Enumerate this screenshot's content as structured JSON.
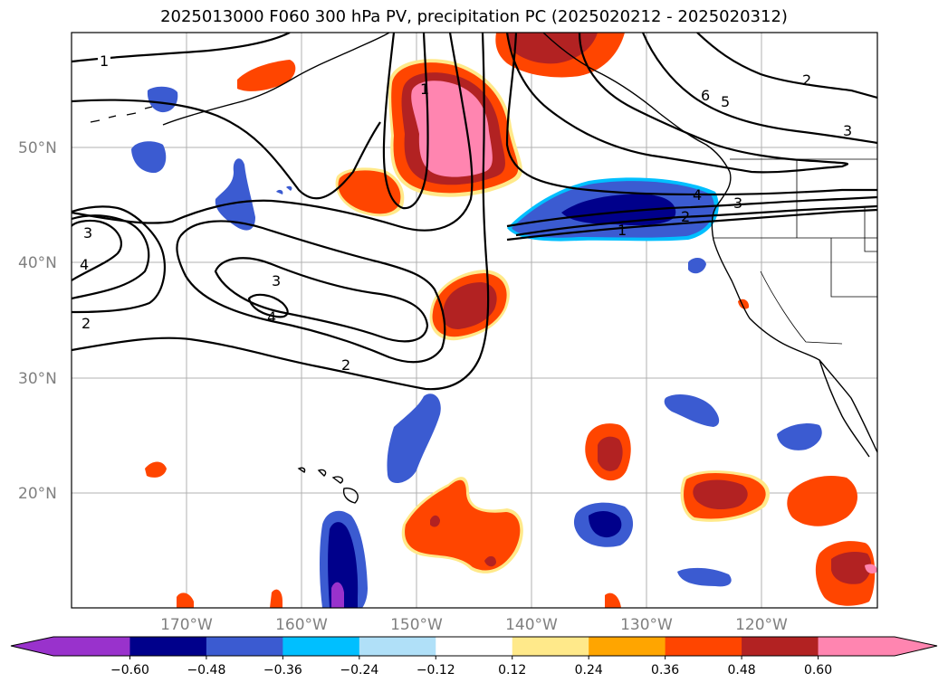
{
  "title": "2025013000 F060 300 hPa PV, precipitation PC (2025020212 - 2025020312)",
  "lat_labels": [
    "50°N",
    "40°N",
    "30°N",
    "20°N"
  ],
  "lon_labels": [
    "170°W",
    "160°W",
    "150°W",
    "140°W",
    "130°W",
    "120°W"
  ],
  "colorbar": {
    "tick_labels": [
      "−0.60",
      "−0.48",
      "−0.36",
      "−0.24",
      "−0.12",
      "0.12",
      "0.24",
      "0.36",
      "0.48",
      "0.60"
    ],
    "colors": [
      "#9932cc",
      "#00008b",
      "#3b5bd1",
      "#00bfff",
      "#b0e0f8",
      "#ffffff",
      "#ffe98a",
      "#ffa500",
      "#ff4500",
      "#b22222",
      "#ff85b0"
    ]
  },
  "contour_labels": [
    "1",
    "2",
    "3",
    "4",
    "5",
    "6"
  ],
  "colors": {
    "pink": "#ff85b0",
    "dark_red": "#b22222",
    "orange_red": "#ff4500",
    "orange": "#ffa500",
    "yellow": "#ffe98a",
    "royal_blue": "#3b5bd1",
    "navy": "#00008b",
    "deep_sky": "#00bfff",
    "light_blue": "#b0e0f8",
    "purple": "#9932cc"
  }
}
